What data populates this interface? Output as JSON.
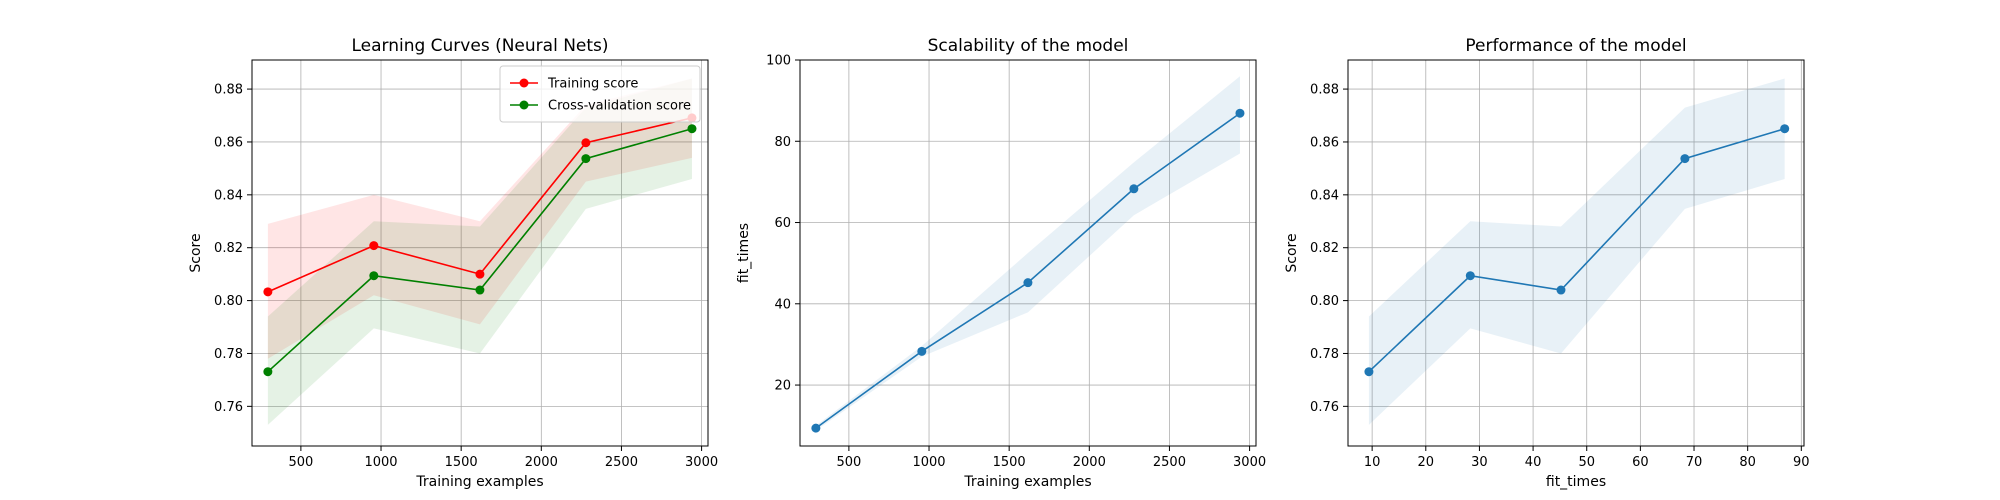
{
  "chart_data": [
    {
      "type": "line",
      "title": "Learning Curves (Neural Nets)",
      "xlabel": "Training examples",
      "ylabel": "Score",
      "xlim": [
        195,
        3040
      ],
      "ylim": [
        0.745,
        0.891
      ],
      "xticks": [
        500,
        1000,
        1500,
        2000,
        2500,
        3000
      ],
      "yticks": [
        0.76,
        0.78,
        0.8,
        0.82,
        0.84,
        0.86,
        0.88
      ],
      "ytick_decimals": 2,
      "grid": true,
      "legend": "top-right",
      "x": [
        294,
        955,
        1617,
        2278,
        2940
      ],
      "series": [
        {
          "name": "Training score",
          "color": "#ff0000",
          "values": [
            0.8033,
            0.8208,
            0.81,
            0.8597,
            0.8691
          ],
          "lower": [
            0.778,
            0.802,
            0.791,
            0.845,
            0.854
          ],
          "upper": [
            0.829,
            0.84,
            0.83,
            0.874,
            0.884
          ]
        },
        {
          "name": "Cross-validation score",
          "color": "#008000",
          "values": [
            0.7731,
            0.8094,
            0.804,
            0.8537,
            0.865
          ],
          "lower": [
            0.753,
            0.7895,
            0.78,
            0.8347,
            0.846
          ],
          "upper": [
            0.794,
            0.83,
            0.828,
            0.873,
            0.884
          ]
        }
      ]
    },
    {
      "type": "line",
      "title": "Scalability of the model",
      "xlabel": "Training examples",
      "ylabel": "fit_times",
      "xlim": [
        195,
        3040
      ],
      "ylim": [
        5.0,
        100.0
      ],
      "xticks": [
        500,
        1000,
        1500,
        2000,
        2500,
        3000
      ],
      "yticks": [
        20,
        40,
        60,
        80,
        100
      ],
      "ytick_decimals": 0,
      "grid": true,
      "x": [
        294,
        955,
        1617,
        2278,
        2940
      ],
      "series": [
        {
          "color": "#1f77b4",
          "values": [
            9.4,
            28.3,
            45.2,
            68.3,
            86.9
          ],
          "lower": [
            8.8,
            27.0,
            37.9,
            61.8,
            77.0
          ],
          "upper": [
            10.0,
            29.6,
            52.5,
            74.8,
            96.0
          ]
        }
      ]
    },
    {
      "type": "line",
      "title": "Performance of the model",
      "xlabel": "fit_times",
      "ylabel": "Score",
      "xlim": [
        5.5,
        90.5
      ],
      "ylim": [
        0.745,
        0.891
      ],
      "xticks": [
        10,
        20,
        30,
        40,
        50,
        60,
        70,
        80,
        90
      ],
      "yticks": [
        0.76,
        0.78,
        0.8,
        0.82,
        0.84,
        0.86,
        0.88
      ],
      "ytick_decimals": 2,
      "grid": true,
      "x": [
        9.4,
        28.3,
        45.2,
        68.3,
        86.9
      ],
      "series": [
        {
          "color": "#1f77b4",
          "values": [
            0.7731,
            0.8094,
            0.804,
            0.8537,
            0.865
          ],
          "lower": [
            0.753,
            0.7895,
            0.78,
            0.8347,
            0.846
          ],
          "upper": [
            0.794,
            0.83,
            0.828,
            0.873,
            0.884
          ]
        }
      ]
    }
  ]
}
